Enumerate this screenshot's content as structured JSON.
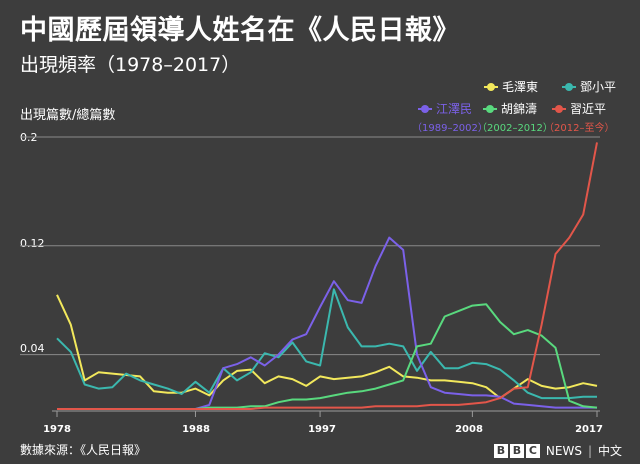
{
  "title": "中國歷屆領導人姓名在《人民日報》",
  "subtitle": "出現頻率（1978–2017）",
  "source": "數據來源：《人民日報》",
  "brand": {
    "letters": [
      "B",
      "B",
      "C"
    ],
    "news": "NEWS",
    "sep": "|",
    "lang": "中文"
  },
  "chart_data": {
    "type": "line",
    "title": "中國歷屆領導人姓名在《人民日報》",
    "subtitle": "出現頻率（1978–2017）",
    "ylabel": "出現篇數/總篇數",
    "xlabel": "",
    "xlim": [
      1978,
      2017
    ],
    "ylim": [
      0,
      0.2
    ],
    "yticks": [
      0.04,
      0.12,
      0.2
    ],
    "yticklabels": [
      "0.04",
      "0.12",
      "0.2"
    ],
    "xticks": [
      1978,
      1988,
      1997,
      2008,
      2017
    ],
    "grid": "horizontal",
    "legend_position": "top-right",
    "x": [
      1978,
      1979,
      1980,
      1981,
      1982,
      1983,
      1984,
      1985,
      1986,
      1987,
      1988,
      1989,
      1990,
      1991,
      1992,
      1993,
      1994,
      1995,
      1996,
      1997,
      1998,
      1999,
      2000,
      2001,
      2002,
      2003,
      2004,
      2005,
      2006,
      2007,
      2008,
      2009,
      2010,
      2011,
      2012,
      2013,
      2014,
      2015,
      2016,
      2017
    ],
    "series": [
      {
        "name": "毛澤東",
        "color": "#f2e85c",
        "values": [
          0.084,
          0.062,
          0.021,
          0.027,
          0.026,
          0.025,
          0.024,
          0.013,
          0.012,
          0.012,
          0.015,
          0.01,
          0.021,
          0.028,
          0.029,
          0.019,
          0.024,
          0.022,
          0.017,
          0.024,
          0.022,
          0.023,
          0.024,
          0.027,
          0.031,
          0.024,
          0.023,
          0.021,
          0.021,
          0.02,
          0.019,
          0.016,
          0.008,
          0.015,
          0.022,
          0.017,
          0.015,
          0.016,
          0.019,
          0.017
        ]
      },
      {
        "name": "鄧小平",
        "color": "#3bb8ae",
        "values": [
          0.052,
          0.042,
          0.018,
          0.015,
          0.016,
          0.026,
          0.021,
          0.018,
          0.015,
          0.011,
          0.02,
          0.012,
          0.03,
          0.021,
          0.027,
          0.041,
          0.038,
          0.049,
          0.035,
          0.032,
          0.088,
          0.06,
          0.046,
          0.046,
          0.048,
          0.046,
          0.028,
          0.042,
          0.03,
          0.03,
          0.034,
          0.033,
          0.029,
          0.021,
          0.012,
          0.008,
          0.008,
          0.008,
          0.009,
          0.009
        ]
      },
      {
        "name": "江澤民",
        "color": "#7b61e8",
        "values": [
          0.0,
          0.0,
          0.0,
          0.0,
          0.0,
          0.0,
          0.0,
          0.0,
          0.0,
          0.0,
          0.0,
          0.003,
          0.03,
          0.033,
          0.038,
          0.032,
          0.04,
          0.051,
          0.055,
          0.075,
          0.094,
          0.08,
          0.078,
          0.105,
          0.126,
          0.117,
          0.04,
          0.016,
          0.012,
          0.011,
          0.01,
          0.01,
          0.009,
          0.004,
          0.003,
          0.002,
          0.001,
          0.001,
          0.001,
          0.001
        ]
      },
      {
        "name": "胡錦濤",
        "color": "#59d97e",
        "values": [
          0.0,
          0.0,
          0.0,
          0.0,
          0.0,
          0.0,
          0.0,
          0.0,
          0.0,
          0.0,
          0.0,
          0.001,
          0.001,
          0.001,
          0.002,
          0.002,
          0.005,
          0.007,
          0.007,
          0.008,
          0.01,
          0.012,
          0.013,
          0.015,
          0.018,
          0.021,
          0.046,
          0.048,
          0.068,
          0.072,
          0.076,
          0.077,
          0.064,
          0.055,
          0.058,
          0.054,
          0.045,
          0.006,
          0.002,
          0.001
        ]
      },
      {
        "name": "習近平",
        "color": "#e2564a",
        "values": [
          0.0,
          0.0,
          0.0,
          0.0,
          0.0,
          0.0,
          0.0,
          0.0,
          0.0,
          0.0,
          0.0,
          0.0,
          0.0,
          0.0,
          0.0,
          0.001,
          0.001,
          0.001,
          0.001,
          0.001,
          0.001,
          0.001,
          0.001,
          0.002,
          0.002,
          0.002,
          0.002,
          0.003,
          0.003,
          0.003,
          0.004,
          0.005,
          0.008,
          0.015,
          0.016,
          0.062,
          0.114,
          0.126,
          0.143,
          0.196
        ]
      }
    ]
  },
  "legend": [
    {
      "name": "毛澤東",
      "color": "#f2e85c",
      "range": ""
    },
    {
      "name": "鄧小平",
      "color": "#3bb8ae",
      "range": ""
    },
    {
      "name": "江澤民",
      "color": "#7b61e8",
      "range": "（1989–2002）"
    },
    {
      "name": "胡錦濤",
      "color": "#59d97e",
      "range": "（2002–2012）"
    },
    {
      "name": "習近平",
      "color": "#e2564a",
      "range": "（2012–至今）"
    }
  ]
}
